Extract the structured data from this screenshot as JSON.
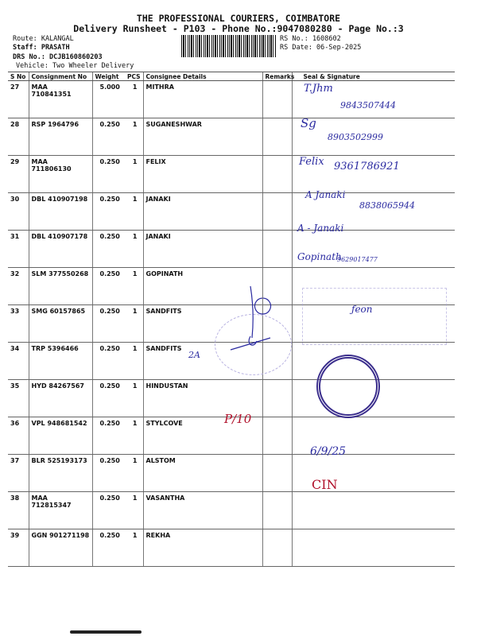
{
  "header": {
    "company": "THE PROFESSIONAL COURIERS, COIMBATORE",
    "subtitle": "Delivery Runsheet - P103 - Phone No.:9047080280 - Page No.:3",
    "route": "Route: KALANGAL",
    "staff": "Staff: PRASATH",
    "drs": "DRS No.: DCJB160860203",
    "vehicle": "Vehicle: Two Wheeler Delivery",
    "rs_no": "RS No.: 1608602",
    "rs_date": "RS Date: 06-Sep-2025"
  },
  "table": {
    "columns": [
      "S No",
      "Consignment No",
      "Weight",
      "PCS",
      "Consignee Details",
      "Remarks",
      "Seal & Signature"
    ],
    "rows": [
      {
        "sno": "27",
        "cn": "MAA 710841351",
        "weight": "5.000",
        "pcs": "1",
        "consignee": "MITHRA"
      },
      {
        "sno": "28",
        "cn": "RSP 1964796",
        "weight": "0.250",
        "pcs": "1",
        "consignee": "SUGANESHWAR"
      },
      {
        "sno": "29",
        "cn": "MAA 711806130",
        "weight": "0.250",
        "pcs": "1",
        "consignee": "FELIX"
      },
      {
        "sno": "30",
        "cn": "DBL 410907198",
        "weight": "0.250",
        "pcs": "1",
        "consignee": "JANAKI"
      },
      {
        "sno": "31",
        "cn": "DBL 410907178",
        "weight": "0.250",
        "pcs": "1",
        "consignee": "JANAKI"
      },
      {
        "sno": "32",
        "cn": "SLM 377550268",
        "weight": "0.250",
        "pcs": "1",
        "consignee": "GOPINATH"
      },
      {
        "sno": "33",
        "cn": "SMG 60157865",
        "weight": "0.250",
        "pcs": "1",
        "consignee": "SANDFITS"
      },
      {
        "sno": "34",
        "cn": "TRP 5396466",
        "weight": "0.250",
        "pcs": "1",
        "consignee": "SANDFITS"
      },
      {
        "sno": "35",
        "cn": "HYD 84267567",
        "weight": "0.250",
        "pcs": "1",
        "consignee": "HINDUSTAN"
      },
      {
        "sno": "36",
        "cn": "VPL 948681542",
        "weight": "0.250",
        "pcs": "1",
        "consignee": "STYLCOVE"
      },
      {
        "sno": "37",
        "cn": "BLR 525193173",
        "weight": "0.250",
        "pcs": "1",
        "consignee": "ALSTOM"
      },
      {
        "sno": "38",
        "cn": "MAA 712815347",
        "weight": "0.250",
        "pcs": "1",
        "consignee": "VASANTHA"
      },
      {
        "sno": "39",
        "cn": "GGN 901271198",
        "weight": "0.250",
        "pcs": "1",
        "consignee": "REKHA"
      }
    ]
  },
  "handwriting": {
    "sig27": "T.Jhm",
    "ph27": "9843507444",
    "sig28": "Sg",
    "ph28": "8903502999",
    "sig29": "Felix",
    "ph29": "9361786921",
    "sig30": "A Janaki",
    "ph30": "8838065944",
    "sig31": "A - Janaki",
    "sig32": "Gopinath",
    "ph32": "9629017477",
    "note35": "2A",
    "note37": "P/10",
    "date38": "6/9/25",
    "note39": "CIN"
  },
  "colors": {
    "ink": "#2a2aa0",
    "red_ink": "#b0102a",
    "stamp": "#3a2d8c"
  }
}
